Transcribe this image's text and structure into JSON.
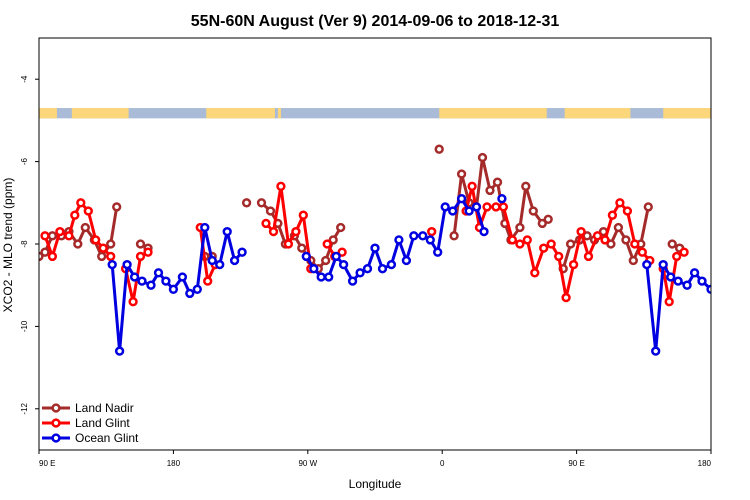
{
  "chart_data": {
    "type": "line",
    "title": "55N-60N August (Ver 9)   2014-09-06 to 2018-12-31",
    "xlabel": "Longitude",
    "ylabel": "XCO2 - MLO trend (ppm)",
    "x_ticks": [
      {
        "value": 0,
        "label": "90 E"
      },
      {
        "value": 90,
        "label": "180"
      },
      {
        "value": 180,
        "label": "90 W"
      },
      {
        "value": 270,
        "label": "0"
      },
      {
        "value": 360,
        "label": "90 E"
      },
      {
        "value": 450,
        "label": "180"
      }
    ],
    "y_ticks": [
      {
        "value": -4,
        "label": "-4"
      },
      {
        "value": -6,
        "label": "-6"
      },
      {
        "value": -8,
        "label": "-8"
      },
      {
        "value": -10,
        "label": "-10"
      },
      {
        "value": -12,
        "label": "-12"
      }
    ],
    "xlim": [
      0,
      450
    ],
    "ylim": [
      -13,
      -3
    ],
    "legend_position": "bottom-left",
    "landmask_band": {
      "y_top": -4.7,
      "y_bottom": -4.95,
      "water_color": "#aabbd8",
      "land_color": "#fcd67a"
    },
    "series": [
      {
        "name": "Land Nadir",
        "color": "#a52a2a",
        "segments": [
          [
            [
              0,
              -8.3
            ],
            [
              4,
              -8.2
            ],
            [
              9,
              -7.8
            ],
            [
              15,
              -7.8
            ],
            [
              20,
              -7.7
            ],
            [
              26,
              -8.0
            ],
            [
              31,
              -7.6
            ],
            [
              37,
              -7.9
            ],
            [
              42,
              -8.3
            ],
            [
              48,
              -8.0
            ],
            [
              52,
              -7.1
            ]
          ],
          [
            [
              68,
              -8.0
            ],
            [
              73,
              -8.1
            ]
          ],
          [
            [
              111,
              -8.3
            ],
            [
              116,
              -8.3
            ]
          ],
          [
            [
              139,
              -7.0
            ]
          ],
          [
            [
              149,
              -7.0
            ],
            [
              155,
              -7.2
            ],
            [
              160,
              -7.5
            ],
            [
              165,
              -8.0
            ],
            [
              171,
              -7.8
            ],
            [
              176,
              -8.1
            ],
            [
              182,
              -8.4
            ],
            [
              187,
              -8.6
            ],
            [
              192,
              -8.4
            ],
            [
              197,
              -7.9
            ],
            [
              202,
              -7.6
            ]
          ],
          [
            [
              268,
              -5.7
            ]
          ],
          [
            [
              278,
              -7.8
            ],
            [
              283,
              -6.3
            ],
            [
              288,
              -7.0
            ],
            [
              293,
              -7.1
            ],
            [
              297,
              -5.9
            ],
            [
              302,
              -6.7
            ],
            [
              307,
              -6.5
            ],
            [
              312,
              -7.5
            ],
            [
              316,
              -7.9
            ],
            [
              322,
              -7.6
            ],
            [
              326,
              -6.6
            ],
            [
              331,
              -7.2
            ],
            [
              337,
              -7.5
            ],
            [
              341,
              -7.4
            ]
          ],
          [
            [
              351,
              -8.6
            ],
            [
              356,
              -8.0
            ],
            [
              362,
              -7.9
            ],
            [
              367,
              -7.8
            ],
            [
              372,
              -7.9
            ],
            [
              378,
              -7.7
            ],
            [
              383,
              -8.0
            ],
            [
              388,
              -7.6
            ],
            [
              393,
              -7.9
            ],
            [
              398,
              -8.4
            ],
            [
              403,
              -8.0
            ],
            [
              408,
              -7.1
            ]
          ],
          [
            [
              424,
              -8.0
            ],
            [
              429,
              -8.1
            ]
          ]
        ]
      },
      {
        "name": "Land Glint",
        "color": "#ff0000",
        "segments": [
          [
            [
              4,
              -7.8
            ],
            [
              9,
              -8.3
            ],
            [
              14,
              -7.7
            ],
            [
              20,
              -7.8
            ],
            [
              24,
              -7.3
            ],
            [
              28,
              -7.0
            ],
            [
              33,
              -7.2
            ],
            [
              38,
              -7.9
            ],
            [
              43,
              -8.1
            ],
            [
              48,
              -8.3
            ]
          ],
          [
            [
              58,
              -8.6
            ],
            [
              63,
              -9.4
            ],
            [
              68,
              -8.3
            ],
            [
              73,
              -8.2
            ]
          ],
          [
            [
              108,
              -7.6
            ],
            [
              113,
              -8.9
            ],
            [
              118,
              -8.5
            ]
          ],
          [
            [
              152,
              -7.5
            ],
            [
              157,
              -7.7
            ],
            [
              162,
              -6.6
            ],
            [
              167,
              -8.0
            ],
            [
              172,
              -7.7
            ],
            [
              177,
              -7.3
            ],
            [
              182,
              -8.6
            ]
          ],
          [
            [
              193,
              -8.0
            ],
            [
              198,
              -8.3
            ],
            [
              203,
              -8.2
            ]
          ],
          [
            [
              263,
              -7.7
            ]
          ],
          [
            [
              286,
              -7.2
            ],
            [
              290,
              -6.6
            ],
            [
              295,
              -7.6
            ],
            [
              300,
              -7.1
            ],
            [
              306,
              -7.1
            ],
            [
              311,
              -7.1
            ],
            [
              317,
              -7.9
            ],
            [
              322,
              -8.0
            ],
            [
              327,
              -7.9
            ],
            [
              332,
              -8.7
            ],
            [
              338,
              -8.1
            ],
            [
              343,
              -8.0
            ],
            [
              348,
              -8.3
            ],
            [
              353,
              -9.3
            ],
            [
              358,
              -8.5
            ],
            [
              363,
              -7.7
            ],
            [
              368,
              -8.3
            ],
            [
              374,
              -7.8
            ],
            [
              379,
              -7.9
            ],
            [
              384,
              -7.3
            ],
            [
              389,
              -7.0
            ],
            [
              394,
              -7.2
            ],
            [
              399,
              -8.0
            ],
            [
              404,
              -8.2
            ],
            [
              409,
              -8.4
            ]
          ],
          [
            [
              418,
              -8.6
            ],
            [
              422,
              -9.4
            ],
            [
              427,
              -8.3
            ],
            [
              432,
              -8.2
            ]
          ]
        ]
      },
      {
        "name": "Ocean Glint",
        "color": "#0000e0",
        "segments": [
          [
            [
              49,
              -8.5
            ],
            [
              54,
              -10.6
            ],
            [
              59,
              -8.5
            ],
            [
              64,
              -8.8
            ],
            [
              69,
              -8.9
            ],
            [
              75,
              -9.0
            ],
            [
              80,
              -8.7
            ],
            [
              85,
              -8.9
            ],
            [
              90,
              -9.1
            ],
            [
              96,
              -8.8
            ],
            [
              101,
              -9.2
            ],
            [
              106,
              -9.1
            ],
            [
              111,
              -7.6
            ],
            [
              116,
              -8.4
            ],
            [
              121,
              -8.5
            ],
            [
              126,
              -7.7
            ],
            [
              131,
              -8.4
            ],
            [
              136,
              -8.2
            ]
          ],
          [
            [
              179,
              -8.3
            ],
            [
              184,
              -8.6
            ],
            [
              189,
              -8.8
            ],
            [
              194,
              -8.8
            ],
            [
              199,
              -8.3
            ],
            [
              204,
              -8.5
            ],
            [
              210,
              -8.9
            ],
            [
              215,
              -8.7
            ],
            [
              220,
              -8.6
            ],
            [
              225,
              -8.1
            ],
            [
              230,
              -8.6
            ],
            [
              236,
              -8.5
            ],
            [
              241,
              -7.9
            ],
            [
              246,
              -8.4
            ],
            [
              251,
              -7.8
            ],
            [
              257,
              -7.8
            ],
            [
              262,
              -7.9
            ],
            [
              267,
              -8.2
            ],
            [
              272,
              -7.1
            ],
            [
              277,
              -7.2
            ],
            [
              283,
              -6.9
            ],
            [
              288,
              -7.2
            ],
            [
              293,
              -7.1
            ],
            [
              298,
              -7.7
            ]
          ],
          [
            [
              310,
              -6.9
            ]
          ],
          [
            [
              407,
              -8.5
            ],
            [
              413,
              -10.6
            ],
            [
              418,
              -8.5
            ],
            [
              423,
              -8.8
            ],
            [
              428,
              -8.9
            ],
            [
              434,
              -9.0
            ],
            [
              439,
              -8.7
            ],
            [
              444,
              -8.9
            ],
            [
              450,
              -9.1
            ]
          ]
        ]
      }
    ]
  }
}
